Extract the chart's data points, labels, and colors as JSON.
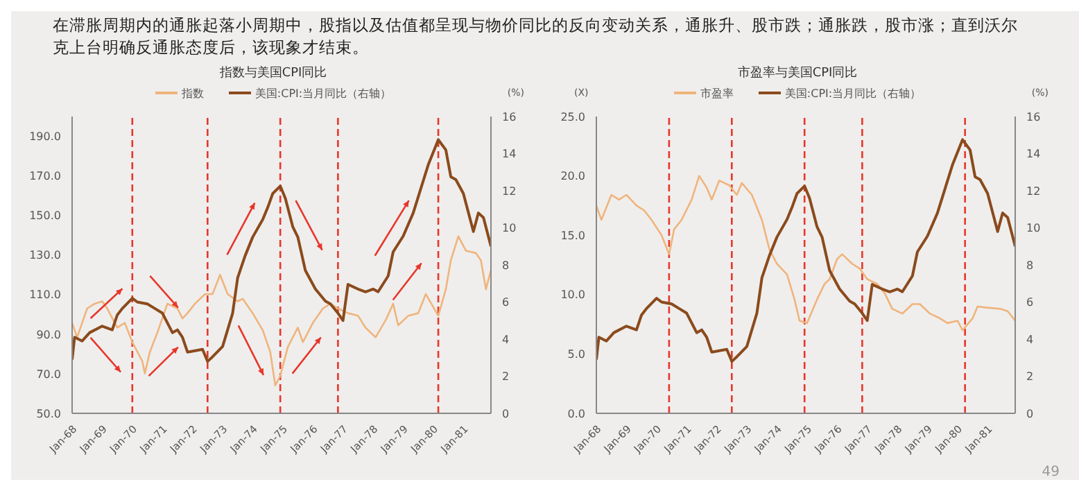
{
  "chart_data": [
    {
      "type": "line",
      "title": "指数与美国CPI同比",
      "y2label": "(%)",
      "annotations": [
        "在滞胀周期内的通胀起落小周期中，股指以及估值都呈现与物价同比的反向变动关系，通胀升、股市跌；通胀跌，股市涨；直到沃尔克上台明确反通胀态度后，该现象才结束。"
      ],
      "legend": "top",
      "marker": "none",
      "line_style": "solid",
      "xlim": [
        "1968-01",
        "1981-12"
      ],
      "xticks": [
        {
          "value": "1968-01",
          "label": "Jan-68"
        },
        {
          "value": "1969-01",
          "label": "Jan-69"
        },
        {
          "value": "1970-01",
          "label": "Jan-70"
        },
        {
          "value": "1971-01",
          "label": "Jan-71"
        },
        {
          "value": "1972-01",
          "label": "Jan-72"
        },
        {
          "value": "1973-01",
          "label": "Jan-73"
        },
        {
          "value": "1974-01",
          "label": "Jan-74"
        },
        {
          "value": "1975-01",
          "label": "Jan-75"
        },
        {
          "value": "1976-01",
          "label": "Jan-76"
        },
        {
          "value": "1977-01",
          "label": "Jan-77"
        },
        {
          "value": "1978-01",
          "label": "Jan-78"
        },
        {
          "value": "1979-01",
          "label": "Jan-79"
        },
        {
          "value": "1980-01",
          "label": "Jan-80"
        },
        {
          "value": "1981-01",
          "label": "Jan-81"
        }
      ],
      "ylim": [
        50,
        200
      ],
      "yticks": [
        {
          "value": 50,
          "label": "50.0"
        },
        {
          "value": 70,
          "label": "70.0"
        },
        {
          "value": 90,
          "label": "90.0"
        },
        {
          "value": 110,
          "label": "110.0"
        },
        {
          "value": 130,
          "label": "130.0"
        },
        {
          "value": 150,
          "label": "150.0"
        },
        {
          "value": 170,
          "label": "170.0"
        },
        {
          "value": 190,
          "label": "190.0"
        }
      ],
      "y2lim": [
        0,
        16
      ],
      "y2ticks": [
        0,
        2,
        4,
        6,
        8,
        10,
        12,
        14,
        16
      ],
      "ref_lines": [
        {
          "axis": "x",
          "value": "1970-01",
          "color": "#e8362a",
          "line_style": "dashed"
        },
        {
          "axis": "x",
          "value": "1972-07",
          "color": "#e8362a",
          "line_style": "dashed"
        },
        {
          "axis": "x",
          "value": "1974-12",
          "color": "#e8362a",
          "line_style": "dashed"
        },
        {
          "axis": "x",
          "value": "1976-11",
          "color": "#e8362a",
          "line_style": "dashed"
        },
        {
          "axis": "x",
          "value": "1980-03",
          "color": "#e8362a",
          "line_style": "dashed"
        }
      ],
      "series": [
        {
          "name": "指数",
          "color": "#f0b47c",
          "x": [
            "1968-01",
            "1968-03",
            "1968-07",
            "1968-10",
            "1969-01",
            "1969-03",
            "1969-07",
            "1969-10",
            "1970-01",
            "1970-05",
            "1970-06",
            "1970-08",
            "1970-11",
            "1971-03",
            "1971-07",
            "1971-09",
            "1971-11",
            "1972-02",
            "1972-06",
            "1972-09",
            "1972-12",
            "1973-03",
            "1973-07",
            "1973-09",
            "1974-01",
            "1974-05",
            "1974-08",
            "1974-10",
            "1974-12",
            "1975-03",
            "1975-07",
            "1975-09",
            "1976-01",
            "1976-05",
            "1976-08",
            "1976-11",
            "1977-03",
            "1977-07",
            "1977-10",
            "1978-02",
            "1978-06",
            "1978-09",
            "1978-11",
            "1979-03",
            "1979-07",
            "1979-10",
            "1980-03",
            "1980-06",
            "1980-08",
            "1980-11",
            "1981-02",
            "1981-06",
            "1981-08",
            "1981-10",
            "1981-12"
          ],
          "values": [
            95.7,
            88.4,
            103,
            105.4,
            106.6,
            103,
            93.3,
            95.7,
            86,
            76.3,
            70.2,
            81,
            90.8,
            105.4,
            103,
            98,
            100.6,
            105.4,
            110.3,
            110.3,
            120,
            110.3,
            106.6,
            107.9,
            100.6,
            92,
            81,
            64.1,
            69,
            83.5,
            93.3,
            86,
            95.7,
            103,
            105.4,
            103,
            100.6,
            99.3,
            93.3,
            88.4,
            97,
            105.4,
            94.5,
            99.3,
            100.6,
            110.3,
            99.3,
            112.7,
            127.3,
            139.5,
            132.2,
            131,
            127.3,
            112.7,
            122.4
          ]
        },
        {
          "name": "美国:CPI:当月同比（右轴）",
          "color": "#8b4a1c",
          "axis": "y2",
          "x": [
            "1968-01",
            "1968-02",
            "1968-05",
            "1968-08",
            "1969-01",
            "1969-05",
            "1969-07",
            "1969-09",
            "1970-01",
            "1970-03",
            "1970-07",
            "1970-10",
            "1971-01",
            "1971-05",
            "1971-07",
            "1971-09",
            "1971-11",
            "1972-05",
            "1972-07",
            "1972-09",
            "1973-01",
            "1973-05",
            "1973-07",
            "1973-10",
            "1974-01",
            "1974-05",
            "1974-07",
            "1974-09",
            "1974-12",
            "1975-02",
            "1975-05",
            "1975-07",
            "1975-10",
            "1976-02",
            "1976-06",
            "1976-08",
            "1976-11",
            "1977-01",
            "1977-03",
            "1977-07",
            "1977-10",
            "1978-01",
            "1978-03",
            "1978-07",
            "1978-09",
            "1979-01",
            "1979-05",
            "1979-08",
            "1979-11",
            "1980-03",
            "1980-06",
            "1980-08",
            "1980-10",
            "1981-01",
            "1981-05",
            "1981-07",
            "1981-09",
            "1981-12"
          ],
          "values": [
            2.9,
            4.1,
            3.9,
            4.35,
            4.7,
            4.5,
            5.3,
            5.65,
            6.2,
            6,
            5.9,
            5.65,
            5.4,
            4.35,
            4.5,
            4.1,
            3.3,
            3.45,
            2.8,
            3.05,
            3.6,
            5.4,
            7.3,
            8.5,
            9.5,
            10.45,
            11.1,
            11.85,
            12.25,
            11.6,
            10.05,
            9.5,
            7.7,
            6.7,
            6.05,
            5.9,
            5.4,
            5,
            6.95,
            6.7,
            6.55,
            6.7,
            6.55,
            7.4,
            8.7,
            9.55,
            10.8,
            12.1,
            13.4,
            14.75,
            14.2,
            12.75,
            12.6,
            11.85,
            9.8,
            10.8,
            10.55,
            9
          ]
        }
      ]
    },
    {
      "type": "line",
      "title": "市盈率与美国CPI同比",
      "ylabel": "(X)",
      "y2label": "(%)",
      "annotations": [
        "49"
      ],
      "legend": "top",
      "marker": "none",
      "line_style": "solid",
      "xlim": [
        "1968-01",
        "1981-12"
      ],
      "xticks": [
        {
          "value": "1968-01",
          "label": "Jan-68"
        },
        {
          "value": "1969-01",
          "label": "Jan-69"
        },
        {
          "value": "1970-01",
          "label": "Jan-70"
        },
        {
          "value": "1971-01",
          "label": "Jan-71"
        },
        {
          "value": "1972-01",
          "label": "Jan-72"
        },
        {
          "value": "1973-01",
          "label": "Jan-73"
        },
        {
          "value": "1974-01",
          "label": "Jan-74"
        },
        {
          "value": "1975-01",
          "label": "Jan-75"
        },
        {
          "value": "1976-01",
          "label": "Jan-76"
        },
        {
          "value": "1977-01",
          "label": "Jan-77"
        },
        {
          "value": "1978-01",
          "label": "Jan-78"
        },
        {
          "value": "1979-01",
          "label": "Jan-79"
        },
        {
          "value": "1980-01",
          "label": "Jan-80"
        },
        {
          "value": "1981-01",
          "label": "Jan-81"
        }
      ],
      "ylim": [
        0,
        25
      ],
      "yticks": [
        {
          "value": 0,
          "label": "0.0"
        },
        {
          "value": 5,
          "label": "5.0"
        },
        {
          "value": 10,
          "label": "10.0"
        },
        {
          "value": 15,
          "label": "15.0"
        },
        {
          "value": 20,
          "label": "20.0"
        },
        {
          "value": 25,
          "label": "25.0"
        }
      ],
      "y2lim": [
        0,
        16
      ],
      "y2ticks": [
        0,
        2,
        4,
        6,
        8,
        10,
        12,
        14,
        16
      ],
      "ref_lines": [
        {
          "axis": "x",
          "value": "1970-06",
          "color": "#e8362a",
          "line_style": "dashed"
        },
        {
          "axis": "x",
          "value": "1972-07",
          "color": "#e8362a",
          "line_style": "dashed"
        },
        {
          "axis": "x",
          "value": "1974-12",
          "color": "#e8362a",
          "line_style": "dashed"
        },
        {
          "axis": "x",
          "value": "1976-11",
          "color": "#e8362a",
          "line_style": "dashed"
        },
        {
          "axis": "x",
          "value": "1980-04",
          "color": "#e8362a",
          "line_style": "dashed"
        }
      ],
      "series": [
        {
          "name": "市盈率",
          "color": "#f0b47c",
          "x": [
            "1968-01",
            "1968-03",
            "1968-07",
            "1968-10",
            "1969-01",
            "1969-05",
            "1969-08",
            "1969-11",
            "1970-03",
            "1970-06",
            "1970-08",
            "1970-11",
            "1971-03",
            "1971-06",
            "1971-09",
            "1971-11",
            "1972-02",
            "1972-06",
            "1972-09",
            "1972-11",
            "1973-03",
            "1973-07",
            "1973-10",
            "1974-01",
            "1974-05",
            "1974-08",
            "1974-10",
            "1975-01",
            "1975-05",
            "1975-08",
            "1975-10",
            "1976-01",
            "1976-03",
            "1976-07",
            "1976-10",
            "1977-01",
            "1977-05",
            "1977-08",
            "1977-11",
            "1978-03",
            "1978-07",
            "1978-10",
            "1979-02",
            "1979-06",
            "1979-09",
            "1980-01",
            "1980-03",
            "1980-07",
            "1980-09",
            "1981-01",
            "1981-06",
            "1981-09",
            "1981-12"
          ],
          "values": [
            17.5,
            16.3,
            18.4,
            18,
            18.4,
            17.5,
            17.1,
            16.3,
            15,
            13.4,
            15.5,
            16.3,
            18,
            20,
            19,
            18,
            19.6,
            19.2,
            18.4,
            19.4,
            18.4,
            16.3,
            13.8,
            12.6,
            11.7,
            9.6,
            7.8,
            7.6,
            9.6,
            10.9,
            11.3,
            13,
            13.4,
            12.6,
            12.2,
            11.3,
            10.9,
            10.1,
            8.8,
            8.4,
            9.2,
            9.2,
            8.4,
            8,
            7.6,
            7.8,
            7,
            8,
            9,
            8.9,
            8.8,
            8.6,
            7.8
          ]
        },
        {
          "name": "美国:CPI:当月同比（右轴）",
          "color": "#8b4a1c",
          "axis": "y2",
          "x": [
            "1968-01",
            "1968-02",
            "1968-05",
            "1968-08",
            "1969-01",
            "1969-05",
            "1969-07",
            "1969-09",
            "1970-01",
            "1970-03",
            "1970-07",
            "1970-10",
            "1971-01",
            "1971-05",
            "1971-07",
            "1971-09",
            "1971-11",
            "1972-05",
            "1972-07",
            "1972-09",
            "1973-01",
            "1973-05",
            "1973-07",
            "1973-10",
            "1974-01",
            "1974-05",
            "1974-07",
            "1974-09",
            "1974-12",
            "1975-02",
            "1975-05",
            "1975-07",
            "1975-10",
            "1976-02",
            "1976-06",
            "1976-08",
            "1976-11",
            "1977-01",
            "1977-03",
            "1977-07",
            "1977-10",
            "1978-01",
            "1978-03",
            "1978-07",
            "1978-09",
            "1979-01",
            "1979-05",
            "1979-08",
            "1979-11",
            "1980-03",
            "1980-06",
            "1980-08",
            "1980-10",
            "1981-01",
            "1981-05",
            "1981-07",
            "1981-09",
            "1981-12"
          ],
          "values": [
            2.9,
            4.1,
            3.9,
            4.35,
            4.7,
            4.5,
            5.3,
            5.65,
            6.2,
            6,
            5.9,
            5.65,
            5.4,
            4.35,
            4.5,
            4.1,
            3.3,
            3.45,
            2.8,
            3.05,
            3.6,
            5.4,
            7.3,
            8.5,
            9.5,
            10.45,
            11.1,
            11.85,
            12.25,
            11.6,
            10.05,
            9.5,
            7.7,
            6.7,
            6.05,
            5.9,
            5.4,
            5,
            6.95,
            6.7,
            6.55,
            6.7,
            6.55,
            7.4,
            8.7,
            9.55,
            10.8,
            12.1,
            13.4,
            14.75,
            14.2,
            12.75,
            12.6,
            11.85,
            9.8,
            10.8,
            10.55,
            9
          ]
        }
      ]
    }
  ]
}
